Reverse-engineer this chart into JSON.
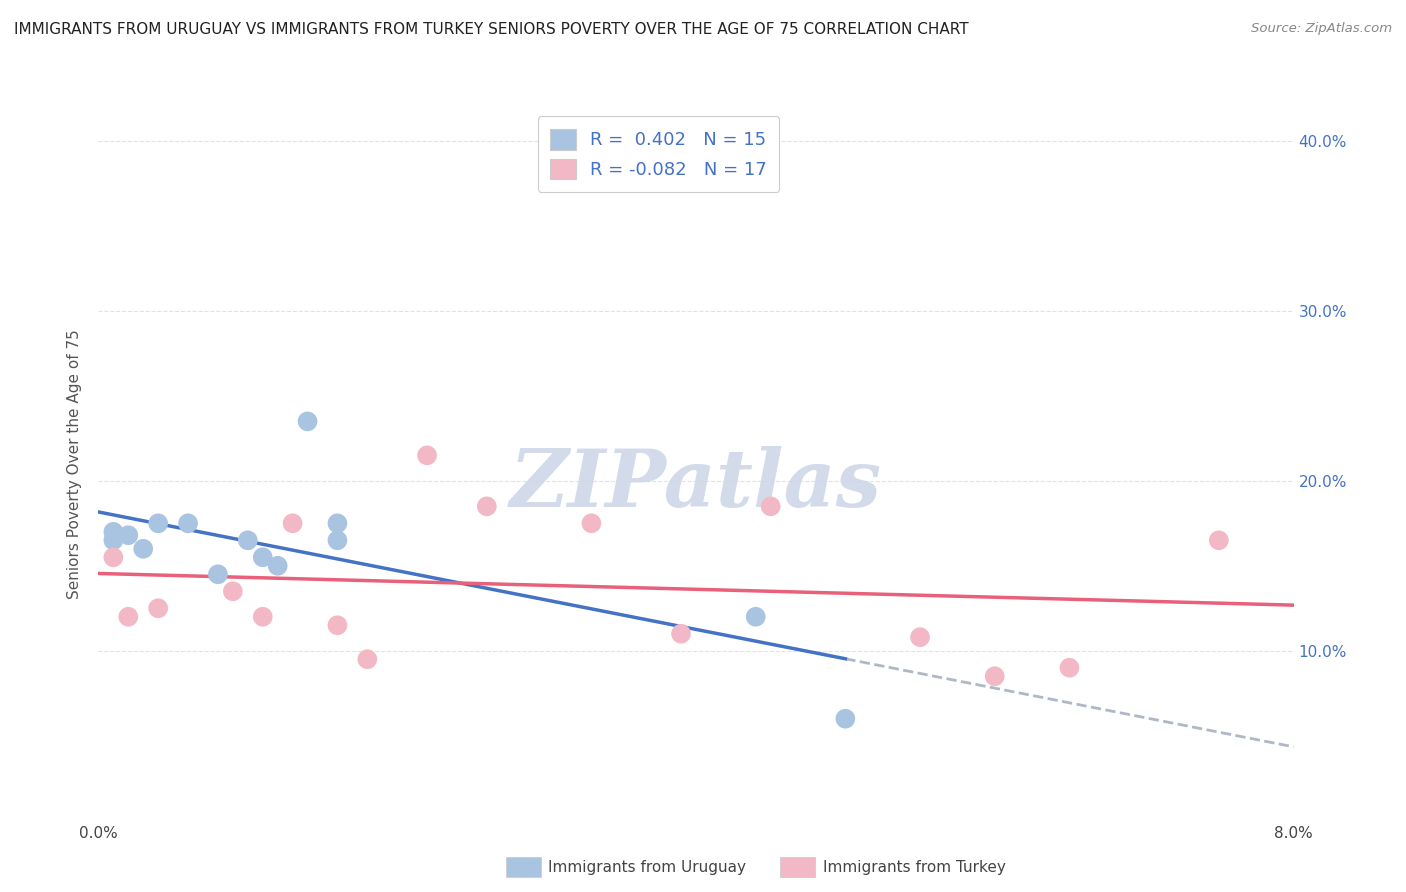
{
  "title": "IMMIGRANTS FROM URUGUAY VS IMMIGRANTS FROM TURKEY SENIORS POVERTY OVER THE AGE OF 75 CORRELATION CHART",
  "source": "Source: ZipAtlas.com",
  "ylabel": "Seniors Poverty Over the Age of 75",
  "xlim": [
    0.0,
    0.08
  ],
  "ylim": [
    0.0,
    0.42
  ],
  "xticks": [
    0.0,
    0.01,
    0.02,
    0.03,
    0.04,
    0.05,
    0.06,
    0.07,
    0.08
  ],
  "yticks": [
    0.0,
    0.1,
    0.2,
    0.3,
    0.4
  ],
  "left_ytick_labels": [
    "",
    "",
    "",
    "",
    ""
  ],
  "xtick_labels": [
    "0.0%",
    "",
    "",
    "",
    "",
    "",
    "",
    "",
    "8.0%"
  ],
  "right_ytick_labels": [
    "",
    "10.0%",
    "20.0%",
    "30.0%",
    "40.0%"
  ],
  "right_yticks": [
    0.0,
    0.1,
    0.2,
    0.3,
    0.4
  ],
  "uruguay_color": "#a8c4e0",
  "turkey_color": "#f2b8c6",
  "uruguay_R": 0.402,
  "uruguay_N": 15,
  "turkey_R": -0.082,
  "turkey_N": 17,
  "uruguay_line_color": "#4472c4",
  "turkey_line_color": "#e8607a",
  "uruguay_scatter_x": [
    0.001,
    0.001,
    0.002,
    0.003,
    0.004,
    0.006,
    0.008,
    0.01,
    0.011,
    0.012,
    0.014,
    0.016,
    0.016,
    0.044,
    0.05
  ],
  "uruguay_scatter_y": [
    0.165,
    0.17,
    0.168,
    0.16,
    0.175,
    0.175,
    0.145,
    0.165,
    0.155,
    0.15,
    0.235,
    0.165,
    0.175,
    0.12,
    0.06
  ],
  "turkey_scatter_x": [
    0.001,
    0.002,
    0.004,
    0.009,
    0.011,
    0.013,
    0.016,
    0.018,
    0.022,
    0.026,
    0.033,
    0.039,
    0.045,
    0.055,
    0.06,
    0.065,
    0.075
  ],
  "turkey_scatter_y": [
    0.155,
    0.12,
    0.125,
    0.135,
    0.12,
    0.175,
    0.115,
    0.095,
    0.215,
    0.185,
    0.175,
    0.11,
    0.185,
    0.108,
    0.085,
    0.09,
    0.165
  ],
  "watermark": "ZIPatlas",
  "watermark_color": "#ccd5e8",
  "legend_label_1": "Immigrants from Uruguay",
  "legend_label_2": "Immigrants from Turkey",
  "background_color": "#ffffff",
  "grid_color": "#dde2ee"
}
